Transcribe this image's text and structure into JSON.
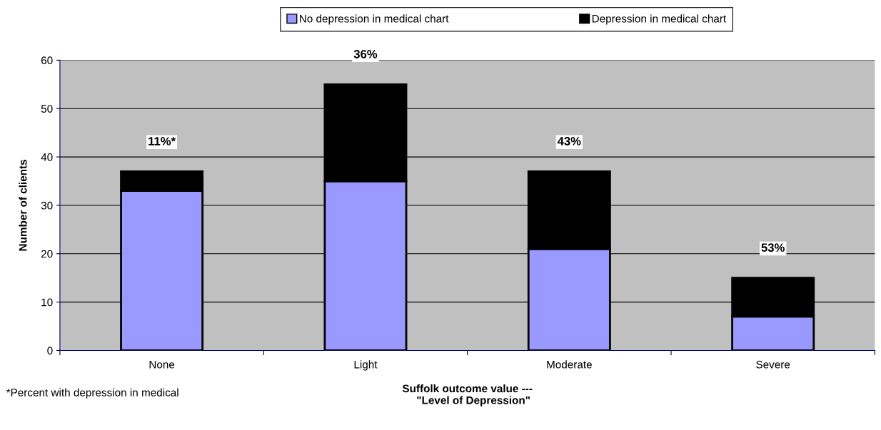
{
  "chart_data": {
    "type": "bar",
    "stacked": true,
    "xlabel": "Suffolk outcome value ---\n    \"Level of Depression\"",
    "ylabel": "Number of clients",
    "categories": [
      "None",
      "Light",
      "Moderate",
      "Severe"
    ],
    "series": [
      {
        "name": "No depression in medical chart",
        "color": "#9999ff",
        "values": [
          33,
          35,
          21,
          7
        ]
      },
      {
        "name": "Depression in medical chart",
        "color": "#000000",
        "values": [
          4,
          20,
          16,
          8
        ]
      }
    ],
    "ylim": [
      0,
      60
    ],
    "yticks": [
      0,
      10,
      20,
      30,
      40,
      50,
      60
    ],
    "grid": "y",
    "legend": "top",
    "annotations": [
      {
        "text": "11%*",
        "x": "None",
        "y": 37
      },
      {
        "text": "36%",
        "x": "Light",
        "y": 55
      },
      {
        "text": "43%",
        "x": "Moderate",
        "y": 37
      },
      {
        "text": "53%",
        "x": "Severe",
        "y": 15
      },
      "*Percent with depression in medical"
    ]
  }
}
